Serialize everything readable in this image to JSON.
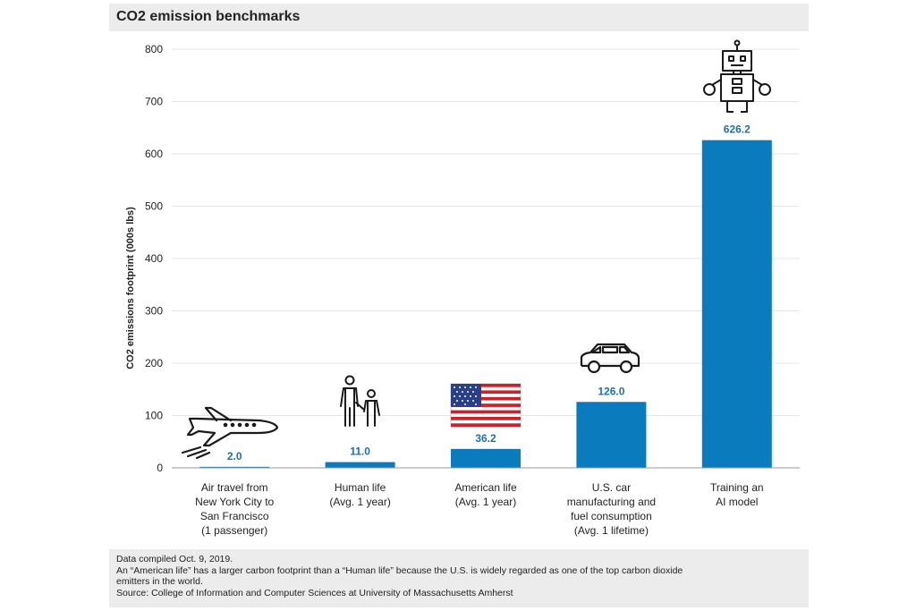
{
  "colors": {
    "bar": "#0a7bbd",
    "value_label": "#1f6fa9",
    "grid": "#e6e6e6",
    "axis": "#999999"
  },
  "chart_data": {
    "type": "bar",
    "title": "CO2 emission benchmarks",
    "xlabel": "",
    "ylabel": "CO2 emissions footprint (000s lbs)",
    "ylim": [
      0,
      800
    ],
    "yticks": [
      "0",
      "100",
      "200",
      "300",
      "400",
      "500",
      "600",
      "700",
      "800"
    ],
    "grid": true,
    "categories": [
      "Air travel from New York City to San Francisco (1 passenger)",
      "Human life (Avg. 1 year)",
      "American life (Avg. 1 year)",
      "U.S. car manufacturing and fuel consumption (Avg. 1 lifetime)",
      "Training an AI model"
    ],
    "category_lines": [
      [
        "Air travel from",
        "New York City to",
        "San Francisco",
        "(1 passenger)"
      ],
      [
        "Human life",
        "(Avg. 1 year)"
      ],
      [
        "American life",
        "(Avg. 1 year)"
      ],
      [
        "U.S. car",
        "manufacturing and",
        "fuel consumption",
        "(Avg. 1 lifetime)"
      ],
      [
        "Training an",
        "AI model"
      ]
    ],
    "values": [
      2.0,
      11.0,
      36.2,
      126.0,
      626.2
    ],
    "value_labels": [
      "2.0",
      "11.0",
      "36.2",
      "126.0",
      "626.2"
    ],
    "icons": [
      "airplane-icon",
      "people-icon",
      "us-flag-icon",
      "car-icon",
      "robot-icon"
    ]
  },
  "notes": {
    "line1": "Data compiled Oct. 9, 2019.",
    "line2": "An “American life” has a larger carbon footprint than a “Human life” because the U.S. is widely regarded as one of the top carbon dioxide",
    "line3": "emitters in the world.",
    "line4": "Source: College of Information and Computer Sciences at University of Massachusetts Amherst"
  }
}
